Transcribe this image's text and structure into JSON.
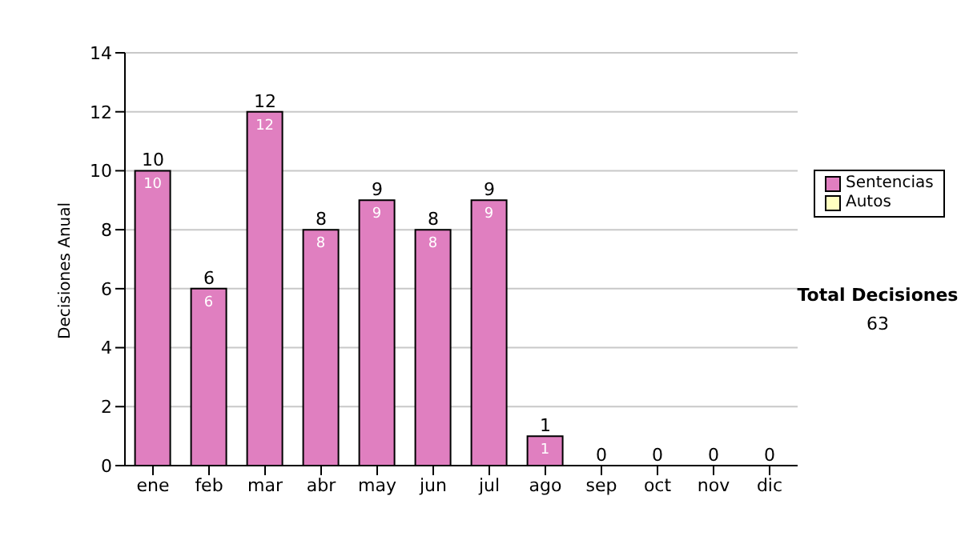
{
  "chart_data": {
    "type": "bar",
    "stacked": true,
    "ylabel": "Decisiones Anual",
    "categories": [
      "ene",
      "feb",
      "mar",
      "abr",
      "may",
      "jun",
      "jul",
      "ago",
      "sep",
      "oct",
      "nov",
      "dic"
    ],
    "series": [
      {
        "name": "Sentencias",
        "color": "#e07fc0",
        "values": [
          10,
          6,
          12,
          8,
          9,
          8,
          9,
          1,
          0,
          0,
          0,
          0
        ],
        "value_labels": [
          "10",
          "6",
          "12",
          "8",
          "9",
          "8",
          "9",
          "1",
          null,
          null,
          null,
          null
        ]
      },
      {
        "name": "Autos",
        "color": "#ffffc0",
        "values": [
          0,
          0,
          0,
          0,
          0,
          0,
          0,
          0,
          0,
          0,
          0,
          0
        ]
      }
    ],
    "totals": [
      "10",
      "6",
      "12",
      "8",
      "9",
      "8",
      "9",
      "1",
      "0",
      "0",
      "0",
      "0"
    ],
    "ylim": [
      0,
      14
    ],
    "yticks": [
      0,
      2,
      4,
      6,
      8,
      10,
      12,
      14
    ],
    "grid": "y",
    "legend": "right",
    "annotations": [
      "Total Decisiones",
      "63"
    ]
  }
}
